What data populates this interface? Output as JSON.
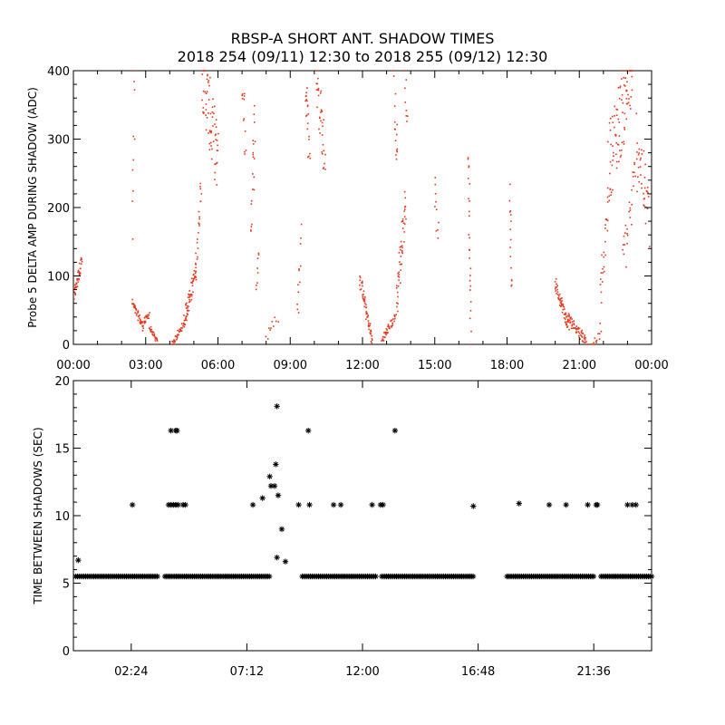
{
  "title_line1": "RBSP-A SHORT ANT. SHADOW TIMES",
  "title_line2": "2018 254 (09/11) 12:30 to 2018 255 (09/12) 12:30",
  "colors": {
    "top_points": "#e8361a",
    "bottom_points": "#000000",
    "axis": "#000000"
  },
  "chart_data": [
    {
      "type": "scatter",
      "ylabel": "Probe 5 DELTA AMP DURING SHADOW (ADC)",
      "xlim": [
        0,
        24
      ],
      "ylim": [
        0,
        400
      ],
      "x_ticks": [
        {
          "v": 0,
          "label": "00:00"
        },
        {
          "v": 3,
          "label": "03:00"
        },
        {
          "v": 6,
          "label": "06:00"
        },
        {
          "v": 9,
          "label": "09:00"
        },
        {
          "v": 12,
          "label": "12:00"
        },
        {
          "v": 15,
          "label": "15:00"
        },
        {
          "v": 18,
          "label": "18:00"
        },
        {
          "v": 21,
          "label": "21:00"
        },
        {
          "v": 24,
          "label": "00:00"
        }
      ],
      "y_ticks": [
        {
          "v": 0,
          "label": "0"
        },
        {
          "v": 100,
          "label": "100"
        },
        {
          "v": 200,
          "label": "200"
        },
        {
          "v": 300,
          "label": "300"
        },
        {
          "v": 400,
          "label": "400"
        }
      ],
      "grid": false,
      "segments": [
        {
          "x": [
            0.02,
            0.35
          ],
          "y": [
            70,
            125
          ],
          "n": 40,
          "spread": 10
        },
        {
          "x": [
            2.45,
            2.9
          ],
          "y": [
            60,
            25
          ],
          "n": 40,
          "spread": 6
        },
        {
          "x": [
            2.9,
            3.15
          ],
          "y": [
            30,
            45
          ],
          "n": 20,
          "spread": 5
        },
        {
          "x": [
            3.15,
            3.5
          ],
          "y": [
            25,
            2
          ],
          "n": 25,
          "spread": 4
        },
        {
          "x": [
            4.1,
            4.6
          ],
          "y": [
            0,
            30
          ],
          "n": 40,
          "spread": 5
        },
        {
          "x": [
            4.6,
            5.1
          ],
          "y": [
            35,
            110
          ],
          "n": 60,
          "spread": 14
        },
        {
          "x": [
            5.1,
            5.3
          ],
          "y": [
            120,
            240
          ],
          "n": 20,
          "spread": 20
        },
        {
          "x": [
            5.35,
            6.0
          ],
          "y": [
            400,
            260
          ],
          "n": 70,
          "spread": 55
        },
        {
          "x": [
            2.45,
            2.55
          ],
          "y": [
            180,
            400
          ],
          "n": 10,
          "spread": 30
        },
        {
          "x": [
            7.0,
            7.15
          ],
          "y": [
            380,
            300
          ],
          "n": 12,
          "spread": 40
        },
        {
          "x": [
            7.35,
            7.55
          ],
          "y": [
            180,
            330
          ],
          "n": 20,
          "spread": 50
        },
        {
          "x": [
            7.6,
            7.7
          ],
          "y": [
            80,
            140
          ],
          "n": 8,
          "spread": 15
        },
        {
          "x": [
            8.0,
            8.5
          ],
          "y": [
            10,
            40
          ],
          "n": 10,
          "spread": 8
        },
        {
          "x": [
            9.3,
            9.45
          ],
          "y": [
            40,
            160
          ],
          "n": 12,
          "spread": 20
        },
        {
          "x": [
            9.65,
            9.8
          ],
          "y": [
            400,
            280
          ],
          "n": 20,
          "spread": 40
        },
        {
          "x": [
            10.1,
            10.45
          ],
          "y": [
            390,
            270
          ],
          "n": 35,
          "spread": 40
        },
        {
          "x": [
            11.9,
            12.4
          ],
          "y": [
            95,
            5
          ],
          "n": 60,
          "spread": 10
        },
        {
          "x": [
            12.8,
            13.35
          ],
          "y": [
            5,
            40
          ],
          "n": 40,
          "spread": 6
        },
        {
          "x": [
            13.4,
            13.8
          ],
          "y": [
            60,
            210
          ],
          "n": 50,
          "spread": 30
        },
        {
          "x": [
            13.3,
            13.45
          ],
          "y": [
            380,
            260
          ],
          "n": 15,
          "spread": 40
        },
        {
          "x": [
            13.75,
            13.85
          ],
          "y": [
            400,
            320
          ],
          "n": 8,
          "spread": 25
        },
        {
          "x": [
            15.0,
            15.15
          ],
          "y": [
            250,
            150
          ],
          "n": 10,
          "spread": 30
        },
        {
          "x": [
            16.4,
            16.5
          ],
          "y": [
            290,
            10
          ],
          "n": 25,
          "spread": 20
        },
        {
          "x": [
            18.1,
            18.2
          ],
          "y": [
            220,
            80
          ],
          "n": 15,
          "spread": 20
        },
        {
          "x": [
            20.0,
            20.55
          ],
          "y": [
            90,
            25
          ],
          "n": 55,
          "spread": 10
        },
        {
          "x": [
            20.5,
            21.3
          ],
          "y": [
            40,
            5
          ],
          "n": 60,
          "spread": 8
        },
        {
          "x": [
            21.5,
            21.9
          ],
          "y": [
            0,
            15
          ],
          "n": 12,
          "spread": 5
        },
        {
          "x": [
            21.85,
            22.2
          ],
          "y": [
            60,
            200
          ],
          "n": 25,
          "spread": 30
        },
        {
          "x": [
            22.2,
            23.2
          ],
          "y": [
            260,
            400
          ],
          "n": 90,
          "spread": 60
        },
        {
          "x": [
            22.8,
            23.4
          ],
          "y": [
            120,
            260
          ],
          "n": 30,
          "spread": 40
        },
        {
          "x": [
            23.4,
            23.9
          ],
          "y": [
            300,
            180
          ],
          "n": 35,
          "spread": 50
        }
      ]
    },
    {
      "type": "scatter",
      "ylabel": "TIME BETWEEN SHADOWS (SEC)",
      "xlim": [
        0,
        24
      ],
      "ylim": [
        0,
        20
      ],
      "x_ticks": [
        {
          "v": 2.4,
          "label": "02:24"
        },
        {
          "v": 7.2,
          "label": "07:12"
        },
        {
          "v": 12.0,
          "label": "12:00"
        },
        {
          "v": 16.8,
          "label": "16:48"
        },
        {
          "v": 21.6,
          "label": "21:36"
        }
      ],
      "y_ticks": [
        {
          "v": 0,
          "label": "0"
        },
        {
          "v": 5,
          "label": "5"
        },
        {
          "v": 10,
          "label": "10"
        },
        {
          "v": 15,
          "label": "15"
        },
        {
          "v": 20,
          "label": "20"
        }
      ],
      "grid": false,
      "baseline_value": 5.5,
      "baseline_ranges": [
        [
          0.1,
          3.5
        ],
        [
          3.8,
          8.2
        ],
        [
          9.5,
          12.6
        ],
        [
          12.8,
          16.6
        ],
        [
          18.0,
          21.6
        ],
        [
          21.9,
          24.0
        ]
      ],
      "points": [
        [
          0.2,
          6.7
        ],
        [
          2.45,
          10.8
        ],
        [
          4.05,
          16.3
        ],
        [
          4.25,
          16.3
        ],
        [
          4.3,
          16.3
        ],
        [
          3.95,
          10.8
        ],
        [
          4.05,
          10.8
        ],
        [
          4.15,
          10.8
        ],
        [
          4.25,
          10.8
        ],
        [
          4.35,
          10.8
        ],
        [
          4.55,
          10.8
        ],
        [
          4.65,
          10.8
        ],
        [
          7.45,
          10.8
        ],
        [
          7.85,
          11.3
        ],
        [
          8.15,
          12.9
        ],
        [
          8.2,
          12.2
        ],
        [
          8.35,
          12.2
        ],
        [
          8.4,
          13.8
        ],
        [
          8.45,
          18.1
        ],
        [
          8.5,
          11.5
        ],
        [
          8.65,
          9.0
        ],
        [
          8.8,
          6.6
        ],
        [
          8.45,
          6.9
        ],
        [
          9.35,
          10.8
        ],
        [
          9.75,
          16.3
        ],
        [
          9.8,
          10.8
        ],
        [
          10.8,
          10.8
        ],
        [
          11.1,
          10.8
        ],
        [
          12.4,
          10.8
        ],
        [
          12.75,
          10.8
        ],
        [
          12.85,
          10.8
        ],
        [
          13.35,
          16.3
        ],
        [
          16.6,
          10.7
        ],
        [
          18.5,
          10.9
        ],
        [
          19.75,
          10.8
        ],
        [
          20.45,
          10.8
        ],
        [
          21.35,
          10.8
        ],
        [
          21.7,
          10.8
        ],
        [
          21.75,
          10.8
        ],
        [
          23.0,
          10.8
        ],
        [
          23.2,
          10.8
        ],
        [
          23.35,
          10.8
        ]
      ]
    }
  ]
}
